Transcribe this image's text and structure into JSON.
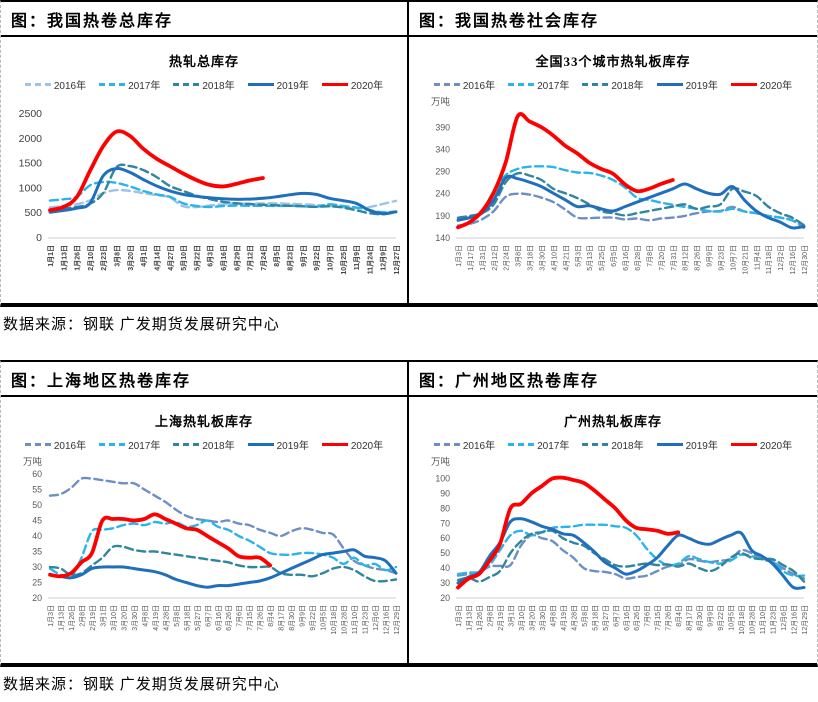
{
  "page": {
    "source_note": "数据来源：钢联 广发期货发展研究中心"
  },
  "figures": [
    {
      "caption": "图：我国热卷总库存"
    },
    {
      "caption": "图：我国热卷社会库存"
    },
    {
      "caption": "图：上海地区热卷库存"
    },
    {
      "caption": "图：广州地区热卷库存"
    }
  ],
  "chart_data": [
    {
      "type": "line",
      "title": "热轧总库存",
      "unit": "",
      "ylim": [
        0,
        2500
      ],
      "yticks": [
        0,
        500,
        1000,
        1500,
        2000,
        2500
      ],
      "grid": false,
      "legend_position": "top",
      "x_labels": [
        "1月1日",
        "1月13日",
        "1月26日",
        "2月10日",
        "2月23日",
        "3月8日",
        "3月20日",
        "4月1日",
        "4月14日",
        "4月27日",
        "5月10日",
        "5月22日",
        "6月3日",
        "6月16日",
        "6月29日",
        "7月12日",
        "7月24日",
        "8月5日",
        "8月23日",
        "9月7日",
        "9月22日",
        "10月7日",
        "10月25日",
        "11月9日",
        "11月24日",
        "12月9日",
        "12月27日"
      ],
      "series": [
        {
          "name": "2016年",
          "color": "#9DC3E6",
          "dash": true,
          "values": [
            615,
            645,
            680,
            760,
            905,
            965,
            950,
            905,
            865,
            815,
            640,
            625,
            655,
            680,
            700,
            690,
            700,
            700,
            690,
            680,
            665,
            645,
            620,
            600,
            625,
            685,
            750
          ]
        },
        {
          "name": "2017年",
          "color": "#29B4EA",
          "dash": true,
          "values": [
            755,
            780,
            830,
            1060,
            1130,
            1110,
            1040,
            950,
            880,
            830,
            700,
            645,
            625,
            645,
            655,
            650,
            650,
            645,
            650,
            640,
            630,
            680,
            645,
            615,
            560,
            520,
            530
          ]
        },
        {
          "name": "2018年",
          "color": "#31859C",
          "dash": true,
          "values": [
            560,
            590,
            625,
            690,
            905,
            1430,
            1450,
            1370,
            1230,
            1050,
            950,
            855,
            785,
            730,
            700,
            685,
            670,
            660,
            650,
            640,
            630,
            640,
            615,
            560,
            500,
            480,
            520
          ]
        },
        {
          "name": "2019年",
          "color": "#1F6FBC",
          "dash": false,
          "values": [
            520,
            555,
            600,
            700,
            1255,
            1400,
            1325,
            1180,
            1050,
            950,
            880,
            840,
            810,
            790,
            780,
            785,
            800,
            830,
            870,
            900,
            880,
            800,
            755,
            700,
            560,
            490,
            530
          ]
        },
        {
          "name": "2020年",
          "color": "#FF0000",
          "dash": false,
          "values": [
            560,
            625,
            820,
            1350,
            1850,
            2145,
            2060,
            1800,
            1600,
            1450,
            1300,
            1170,
            1070,
            1040,
            1090,
            1160,
            1210
          ]
        }
      ]
    },
    {
      "type": "line",
      "title": "全国33个城市热轧板库存",
      "unit": "万吨",
      "ylim": [
        140,
        420
      ],
      "yticks": [
        140,
        190,
        240,
        290,
        340,
        390
      ],
      "grid": false,
      "legend_position": "top",
      "x_labels": [
        "1月3日",
        "1月17日",
        "1月31日",
        "2月12日",
        "2月24日",
        "3月8日",
        "3月18日",
        "3月30日",
        "4月10日",
        "4月21日",
        "5月3日",
        "5月13日",
        "5月25日",
        "6月5日",
        "6月16日",
        "6月28日",
        "7月8日",
        "7月20日",
        "7月31日",
        "8月12日",
        "8月26日",
        "9月9日",
        "9月23日",
        "10月7日",
        "10月21日",
        "11月4日",
        "11月18日",
        "12月2日",
        "12月16日",
        "12月30日"
      ],
      "series": [
        {
          "name": "2016年",
          "color": "#6D8FC4",
          "dash": true,
          "values": [
            168,
            172,
            182,
            201,
            233,
            240,
            238,
            231,
            221,
            204,
            186,
            185,
            186,
            186,
            182,
            184,
            180,
            184,
            186,
            190,
            196,
            200,
            201,
            210,
            200,
            196,
            190,
            186,
            180,
            163
          ]
        },
        {
          "name": "2017年",
          "color": "#29B4EA",
          "dash": true,
          "values": [
            184,
            188,
            201,
            246,
            282,
            296,
            301,
            302,
            300,
            293,
            288,
            287,
            281,
            271,
            254,
            231,
            226,
            220,
            215,
            210,
            206,
            201,
            200,
            206,
            200,
            196,
            190,
            186,
            180,
            168
          ]
        },
        {
          "name": "2018年",
          "color": "#31859C",
          "dash": true,
          "values": [
            186,
            190,
            196,
            216,
            266,
            286,
            281,
            271,
            251,
            241,
            230,
            216,
            201,
            196,
            191,
            196,
            201,
            206,
            211,
            216,
            206,
            211,
            216,
            251,
            245,
            235,
            211,
            196,
            186,
            169
          ]
        },
        {
          "name": "2019年",
          "color": "#1F6FBC",
          "dash": false,
          "values": [
            180,
            186,
            196,
            226,
            276,
            274,
            266,
            256,
            241,
            226,
            211,
            213,
            206,
            201,
            211,
            221,
            231,
            241,
            251,
            262,
            251,
            241,
            239,
            256,
            226,
            201,
            186,
            176,
            163,
            166
          ]
        },
        {
          "name": "2020年",
          "color": "#FF0000",
          "dash": false,
          "values": [
            164,
            176,
            200,
            243,
            311,
            415,
            403,
            390,
            371,
            348,
            331,
            310,
            296,
            285,
            261,
            246,
            251,
            262,
            271
          ]
        }
      ]
    },
    {
      "type": "line",
      "title": "上海热轧板库存",
      "unit": "万吨",
      "ylim": [
        20,
        60
      ],
      "yticks": [
        20,
        25,
        30,
        35,
        40,
        45,
        50,
        55,
        60
      ],
      "grid": false,
      "legend_position": "top",
      "x_labels": [
        "1月3日",
        "1月13日",
        "1月26日",
        "2月8日",
        "2月19日",
        "3月1日",
        "3月10日",
        "3月20日",
        "3月30日",
        "4月8日",
        "4月19日",
        "4月28日",
        "5月8日",
        "5月18日",
        "5月27日",
        "6月7日",
        "6月16日",
        "6月26日",
        "7月6日",
        "7月15日",
        "7月26日",
        "8月4日",
        "8月17日",
        "8月30日",
        "9月9日",
        "9月22日",
        "10月5日",
        "10月18日",
        "10月28日",
        "11月10日",
        "11月23日",
        "12月6日",
        "12月16日",
        "12月29日"
      ],
      "series": [
        {
          "name": "2016年",
          "color": "#6D8FC4",
          "dash": true,
          "values": [
            53,
            53.5,
            55.5,
            58.5,
            58.5,
            58,
            57.5,
            57,
            57,
            55,
            53,
            51,
            48.5,
            46.5,
            45.5,
            45,
            44.5,
            45,
            44,
            43.5,
            42,
            41,
            40,
            41.5,
            42.5,
            42,
            41,
            40.5,
            36,
            32,
            30.5,
            29.5,
            29,
            28
          ]
        },
        {
          "name": "2017年",
          "color": "#29B4EA",
          "dash": true,
          "values": [
            29.5,
            27.5,
            27,
            33,
            41.5,
            42,
            42.5,
            43.5,
            44,
            43.5,
            44.5,
            44,
            44.5,
            43,
            43.5,
            45,
            43,
            42,
            40,
            38.5,
            36.5,
            34.5,
            34,
            34,
            34.5,
            34.5,
            34,
            33,
            31,
            33,
            30.5,
            31,
            29,
            30
          ]
        },
        {
          "name": "2018年",
          "color": "#31859C",
          "dash": true,
          "values": [
            30,
            29.5,
            27.5,
            28,
            30.5,
            33,
            36.5,
            36.5,
            35.5,
            35,
            35,
            34.5,
            34,
            33.5,
            33,
            32.5,
            32,
            31.5,
            30.5,
            30,
            30,
            30,
            28,
            27.5,
            27.5,
            27,
            28,
            29.5,
            30,
            29,
            27,
            25.5,
            25.5,
            26
          ]
        },
        {
          "name": "2019年",
          "color": "#1F6FBC",
          "dash": false,
          "values": [
            27.5,
            27,
            26.5,
            27.5,
            29.5,
            30,
            30,
            30,
            29.5,
            29,
            28.5,
            27.5,
            26,
            25,
            24,
            23.5,
            24,
            24,
            24.5,
            25,
            25.5,
            26.5,
            28,
            29.5,
            31,
            32.5,
            34,
            34.5,
            35,
            35.5,
            33.5,
            33,
            32,
            28
          ]
        },
        {
          "name": "2020年",
          "color": "#FF0000",
          "dash": false,
          "values": [
            27.5,
            27,
            28,
            31.5,
            34.5,
            45,
            45.5,
            45.5,
            45,
            45.5,
            47,
            45.5,
            44,
            42.5,
            42,
            40,
            38,
            36,
            33.5,
            33,
            33,
            30.5
          ]
        }
      ]
    },
    {
      "type": "line",
      "title": "广州热轧板库存",
      "unit": "万吨",
      "ylim": [
        20,
        103
      ],
      "yticks": [
        20,
        30,
        40,
        50,
        60,
        70,
        80,
        90,
        100
      ],
      "grid": false,
      "legend_position": "top",
      "x_labels": [
        "1月3日",
        "1月13日",
        "1月26日",
        "2月8日",
        "2月19日",
        "3月1日",
        "3月10日",
        "3月20日",
        "3月30日",
        "4月8日",
        "4月19日",
        "4月28日",
        "5月8日",
        "5月18日",
        "5月27日",
        "6月7日",
        "6月16日",
        "6月26日",
        "7月6日",
        "7月15日",
        "7月26日",
        "8月4日",
        "8月17日",
        "8月30日",
        "9月9日",
        "9月22日",
        "10月5日",
        "10月18日",
        "10月28日",
        "11月10日",
        "11月23日",
        "12月6日",
        "12月16日",
        "12月29日"
      ],
      "series": [
        {
          "name": "2016年",
          "color": "#6D8FC4",
          "dash": true,
          "values": [
            35,
            36,
            37,
            41,
            41.5,
            42,
            55,
            62,
            60,
            58,
            52,
            47,
            40,
            38,
            37.5,
            36,
            33,
            34,
            35,
            38,
            41,
            42,
            46,
            45,
            44,
            45,
            46,
            52,
            50,
            46,
            44,
            40,
            36,
            33
          ]
        },
        {
          "name": "2017年",
          "color": "#29B4EA",
          "dash": true,
          "values": [
            36,
            37,
            37.5,
            42,
            52,
            62,
            65,
            62,
            64,
            67,
            67.5,
            68,
            69,
            69,
            69,
            68,
            67,
            62,
            53,
            46,
            42,
            43,
            48,
            46,
            44,
            43,
            45,
            49,
            48,
            46,
            45,
            38,
            35,
            35
          ]
        },
        {
          "name": "2018年",
          "color": "#31859C",
          "dash": true,
          "values": [
            32,
            33.5,
            31,
            34,
            38,
            50,
            58,
            63,
            64,
            65,
            60,
            57,
            55,
            50,
            46,
            42,
            41,
            42,
            43,
            42,
            42.5,
            41,
            43,
            40,
            38,
            41,
            47,
            50,
            47,
            46,
            46,
            42,
            38,
            31
          ]
        },
        {
          "name": "2019年",
          "color": "#1F6FBC",
          "dash": false,
          "values": [
            30,
            34,
            37,
            48,
            57,
            71,
            73,
            71,
            68,
            66,
            63,
            62,
            57,
            51,
            44,
            40,
            36,
            38,
            42,
            47,
            55,
            62,
            60,
            57,
            56,
            59,
            62,
            63.5,
            52,
            48,
            43,
            35,
            27,
            27
          ]
        },
        {
          "name": "2020年",
          "color": "#FF0000",
          "dash": false,
          "values": [
            27,
            33,
            36,
            45,
            56,
            80,
            83,
            90,
            95,
            100,
            100.5,
            99,
            97,
            92,
            86,
            80,
            72,
            67,
            66,
            65,
            63,
            64
          ]
        }
      ]
    }
  ]
}
